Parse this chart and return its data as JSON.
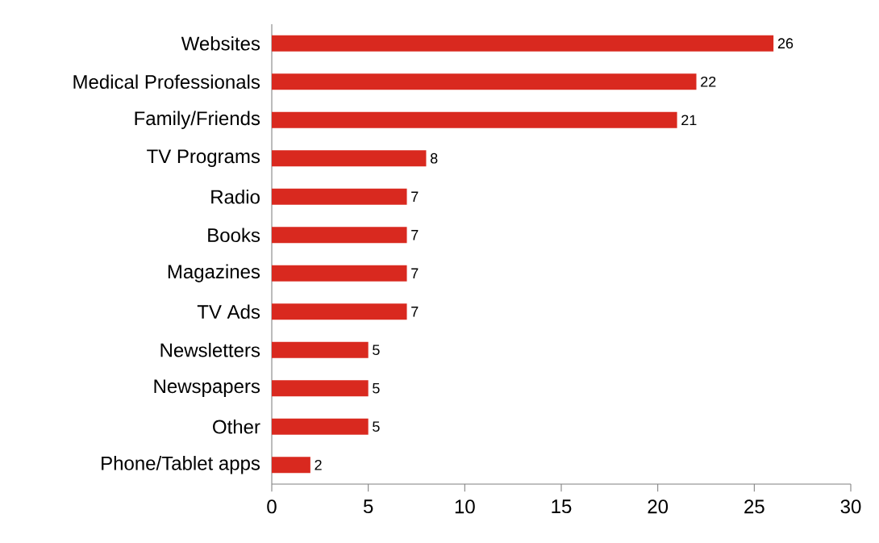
{
  "chart_data": {
    "type": "bar",
    "orientation": "horizontal",
    "categories": [
      "Websites",
      "Medical Professionals",
      "Family/Friends",
      "TV Programs",
      "Radio",
      "Books",
      "Magazines",
      "TV Ads",
      "Newsletters",
      "Newspapers",
      "Other",
      "Phone/Tablet apps"
    ],
    "values": [
      26,
      22,
      21,
      8,
      7,
      7,
      7,
      7,
      5,
      5,
      5,
      2
    ],
    "color": "#d9291f",
    "xlim": [
      0,
      30
    ],
    "xticks": [
      0,
      5,
      10,
      15,
      20,
      25,
      30
    ],
    "data_labels": true
  }
}
